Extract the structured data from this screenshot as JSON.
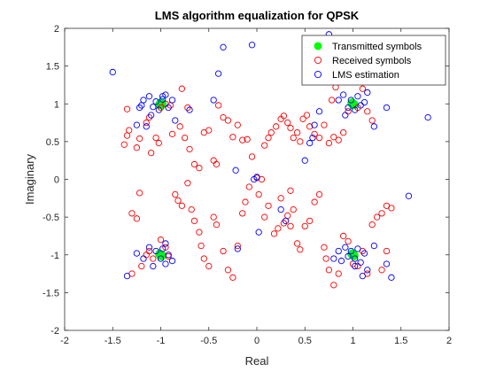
{
  "chart_data": {
    "type": "scatter",
    "title": "LMS algorithm equalization for QPSK",
    "xlabel": "Real",
    "ylabel": "Imaginary",
    "xlim": [
      -2,
      2
    ],
    "ylim": [
      -2,
      2
    ],
    "xticks": [
      "-2",
      "-1.5",
      "-1",
      "-0.5",
      "0",
      "0.5",
      "1",
      "1.5",
      "2"
    ],
    "yticks": [
      "-2",
      "-1.5",
      "-1",
      "-0.5",
      "0",
      "0.5",
      "1",
      "1.5",
      "2"
    ],
    "grid": false,
    "box": true,
    "legend_position": "top-right",
    "series": [
      {
        "name": "Transmitted symbols",
        "marker": "filled-circle",
        "color": "#00ff00",
        "points": [
          [
            -1,
            1
          ],
          [
            -0.99,
            1.01
          ],
          [
            -1.01,
            0.99
          ],
          [
            -1,
            1.01
          ],
          [
            -0.99,
            0.99
          ],
          [
            1,
            1
          ],
          [
            0.99,
            1.01
          ],
          [
            1.01,
            0.99
          ],
          [
            1,
            0.99
          ],
          [
            -1,
            -1
          ],
          [
            -0.99,
            -1.01
          ],
          [
            -1.01,
            -0.99
          ],
          [
            -1,
            -1.01
          ],
          [
            1,
            -1
          ],
          [
            0.99,
            -0.99
          ],
          [
            1.01,
            -1.01
          ],
          [
            1,
            -0.99
          ]
        ]
      },
      {
        "name": "Received symbols",
        "marker": "open-circle",
        "color": "#ff0000",
        "points": [
          [
            -1.35,
            0.58
          ],
          [
            -1.33,
            0.65
          ],
          [
            -1.38,
            0.46
          ],
          [
            -1.25,
            0.42
          ],
          [
            -1.22,
            0.54
          ],
          [
            -1.15,
            0.75
          ],
          [
            -1.12,
            0.82
          ],
          [
            -1.0,
            0.95
          ],
          [
            -0.95,
            1.0
          ],
          [
            -0.9,
            0.98
          ],
          [
            -1.05,
            0.55
          ],
          [
            -1.1,
            0.35
          ],
          [
            -1.02,
            0.48
          ],
          [
            -0.88,
            0.6
          ],
          [
            -0.8,
            0.7
          ],
          [
            -0.75,
            0.55
          ],
          [
            -0.7,
            0.4
          ],
          [
            -0.65,
            0.2
          ],
          [
            -0.6,
            0.15
          ],
          [
            -0.55,
            0.62
          ],
          [
            -0.5,
            0.65
          ],
          [
            -0.45,
            0.25
          ],
          [
            -0.42,
            0.2
          ],
          [
            -0.4,
            0.98
          ],
          [
            -0.35,
            0.82
          ],
          [
            -0.3,
            0.78
          ],
          [
            -0.25,
            0.56
          ],
          [
            -0.2,
            0.72
          ],
          [
            -0.15,
            0.52
          ],
          [
            -0.1,
            0.53
          ],
          [
            -0.05,
            0.3
          ],
          [
            0.0,
            0.02
          ],
          [
            0.05,
            0.0
          ],
          [
            0.08,
            0.45
          ],
          [
            0.12,
            0.55
          ],
          [
            0.15,
            0.62
          ],
          [
            0.2,
            0.7
          ],
          [
            0.25,
            0.8
          ],
          [
            0.28,
            0.84
          ],
          [
            0.32,
            0.75
          ],
          [
            0.35,
            0.68
          ],
          [
            0.38,
            0.55
          ],
          [
            0.42,
            0.62
          ],
          [
            0.45,
            0.5
          ],
          [
            0.48,
            0.8
          ],
          [
            0.52,
            0.85
          ],
          [
            0.55,
            0.7
          ],
          [
            0.6,
            0.6
          ],
          [
            0.65,
            0.55
          ],
          [
            0.7,
            0.72
          ],
          [
            0.75,
            0.48
          ],
          [
            0.8,
            0.56
          ],
          [
            0.85,
            0.52
          ],
          [
            0.9,
            0.62
          ],
          [
            0.95,
            0.9
          ],
          [
            1.05,
            0.95
          ],
          [
            1.1,
            1.2
          ],
          [
            1.15,
            0.9
          ],
          [
            1.2,
            0.78
          ],
          [
            0.82,
            1.22
          ],
          [
            0.78,
            1.05
          ],
          [
            -0.78,
            1.2
          ],
          [
            -0.72,
            0.95
          ],
          [
            -1.35,
            0.93
          ],
          [
            -1.3,
            -0.45
          ],
          [
            -1.25,
            -0.52
          ],
          [
            -1.22,
            -0.18
          ],
          [
            -1.12,
            -0.95
          ],
          [
            -1.08,
            -1.05
          ],
          [
            -1.0,
            -0.8
          ],
          [
            -0.95,
            -0.9
          ],
          [
            -0.92,
            -1.02
          ],
          [
            -0.85,
            -0.2
          ],
          [
            -0.82,
            -0.28
          ],
          [
            -0.78,
            -0.35
          ],
          [
            -0.72,
            -0.05
          ],
          [
            -0.68,
            -0.4
          ],
          [
            -0.65,
            -0.55
          ],
          [
            -0.6,
            -0.7
          ],
          [
            -0.58,
            -0.88
          ],
          [
            -0.55,
            -1.05
          ],
          [
            -0.5,
            -1.15
          ],
          [
            -0.45,
            -0.5
          ],
          [
            -0.42,
            -0.6
          ],
          [
            -0.35,
            -0.95
          ],
          [
            -0.3,
            -1.2
          ],
          [
            -0.25,
            -1.3
          ],
          [
            -0.2,
            -0.88
          ],
          [
            -0.15,
            -0.45
          ],
          [
            -0.12,
            -0.3
          ],
          [
            -0.08,
            -0.1
          ],
          [
            0.02,
            -0.2
          ],
          [
            0.08,
            -0.5
          ],
          [
            0.12,
            -0.35
          ],
          [
            0.18,
            -0.72
          ],
          [
            0.22,
            -0.65
          ],
          [
            0.28,
            -0.58
          ],
          [
            0.32,
            -0.48
          ],
          [
            0.35,
            -0.62
          ],
          [
            0.38,
            -0.4
          ],
          [
            0.42,
            -0.85
          ],
          [
            0.45,
            -0.93
          ],
          [
            0.5,
            -0.62
          ],
          [
            0.55,
            -0.55
          ],
          [
            0.6,
            -0.3
          ],
          [
            0.65,
            -0.2
          ],
          [
            0.7,
            -0.9
          ],
          [
            0.72,
            -1.05
          ],
          [
            0.75,
            -1.2
          ],
          [
            0.8,
            -1.4
          ],
          [
            0.85,
            -1.25
          ],
          [
            0.9,
            -0.75
          ],
          [
            0.95,
            -0.82
          ],
          [
            1.0,
            -1.12
          ],
          [
            1.05,
            -1.15
          ],
          [
            1.1,
            -0.95
          ],
          [
            1.15,
            -1.25
          ],
          [
            1.2,
            -0.6
          ],
          [
            1.25,
            -0.5
          ],
          [
            1.3,
            -0.45
          ],
          [
            1.35,
            -0.35
          ],
          [
            1.4,
            -0.38
          ],
          [
            0.35,
            -0.15
          ],
          [
            0.25,
            -0.25
          ],
          [
            -1.3,
            -1.25
          ],
          [
            -1.2,
            -1.15
          ],
          [
            -1.15,
            -1.0
          ],
          [
            1.35,
            -0.95
          ],
          [
            1.3,
            -1.2
          ]
        ]
      },
      {
        "name": "LMS estimation",
        "marker": "open-circle",
        "color": "#0000ff",
        "points": [
          [
            -1.5,
            1.42
          ],
          [
            -1.2,
            0.98
          ],
          [
            -1.18,
            1.05
          ],
          [
            -1.12,
            1.1
          ],
          [
            -1.08,
            0.96
          ],
          [
            -1.05,
            1.03
          ],
          [
            -1.02,
            0.92
          ],
          [
            -0.98,
            1.06
          ],
          [
            -0.95,
            1.12
          ],
          [
            -0.92,
            0.95
          ],
          [
            -0.88,
            1.05
          ],
          [
            -1.1,
            0.85
          ],
          [
            -0.85,
            0.78
          ],
          [
            -1.22,
            0.95
          ],
          [
            -1.15,
            0.7
          ],
          [
            -0.4,
            1.4
          ],
          [
            -0.35,
            1.75
          ],
          [
            -0.05,
            1.78
          ],
          [
            -0.45,
            1.05
          ],
          [
            -1.25,
            0.72
          ],
          [
            -0.98,
            1.1
          ],
          [
            -0.7,
            0.92
          ],
          [
            0.75,
            1.92
          ],
          [
            0.85,
            1.05
          ],
          [
            0.9,
            1.12
          ],
          [
            0.95,
            0.95
          ],
          [
            0.98,
            1.05
          ],
          [
            1.02,
            0.92
          ],
          [
            1.05,
            1.1
          ],
          [
            1.08,
            0.98
          ],
          [
            1.12,
            1.02
          ],
          [
            1.15,
            1.15
          ],
          [
            1.22,
            0.7
          ],
          [
            1.35,
            0.95
          ],
          [
            1.78,
            0.82
          ],
          [
            0.58,
            0.55
          ],
          [
            0.92,
            0.85
          ],
          [
            0.8,
            1.3
          ],
          [
            0.65,
            0.9
          ],
          [
            -1.35,
            -1.28
          ],
          [
            -1.25,
            -0.98
          ],
          [
            -1.12,
            -0.9
          ],
          [
            -1.08,
            -1.15
          ],
          [
            -1.05,
            -0.95
          ],
          [
            -1.0,
            -1.05
          ],
          [
            -0.98,
            -0.92
          ],
          [
            -0.95,
            -1.12
          ],
          [
            -0.92,
            -1.0
          ],
          [
            -0.88,
            -1.08
          ],
          [
            -1.18,
            -1.05
          ],
          [
            -0.95,
            -0.85
          ],
          [
            0.8,
            -1.05
          ],
          [
            0.85,
            -0.95
          ],
          [
            0.88,
            -1.08
          ],
          [
            0.92,
            -0.9
          ],
          [
            0.95,
            -1.02
          ],
          [
            0.98,
            -0.95
          ],
          [
            1.02,
            -1.05
          ],
          [
            1.05,
            -0.92
          ],
          [
            1.08,
            -1.1
          ],
          [
            1.12,
            -0.98
          ],
          [
            1.15,
            -1.2
          ],
          [
            1.1,
            -1.28
          ],
          [
            1.22,
            -0.88
          ],
          [
            1.58,
            -0.22
          ],
          [
            1.35,
            -1.12
          ],
          [
            1.4,
            -1.3
          ],
          [
            1.02,
            -1.15
          ],
          [
            0.3,
            -0.55
          ],
          [
            0.25,
            -0.4
          ],
          [
            -0.22,
            0.12
          ],
          [
            -0.2,
            -0.92
          ],
          [
            0.02,
            -0.7
          ],
          [
            -0.03,
            0.0
          ],
          [
            0.0,
            0.03
          ],
          [
            0.5,
            0.25
          ],
          [
            0.55,
            0.48
          ],
          [
            0.6,
            0.72
          ]
        ]
      }
    ]
  }
}
